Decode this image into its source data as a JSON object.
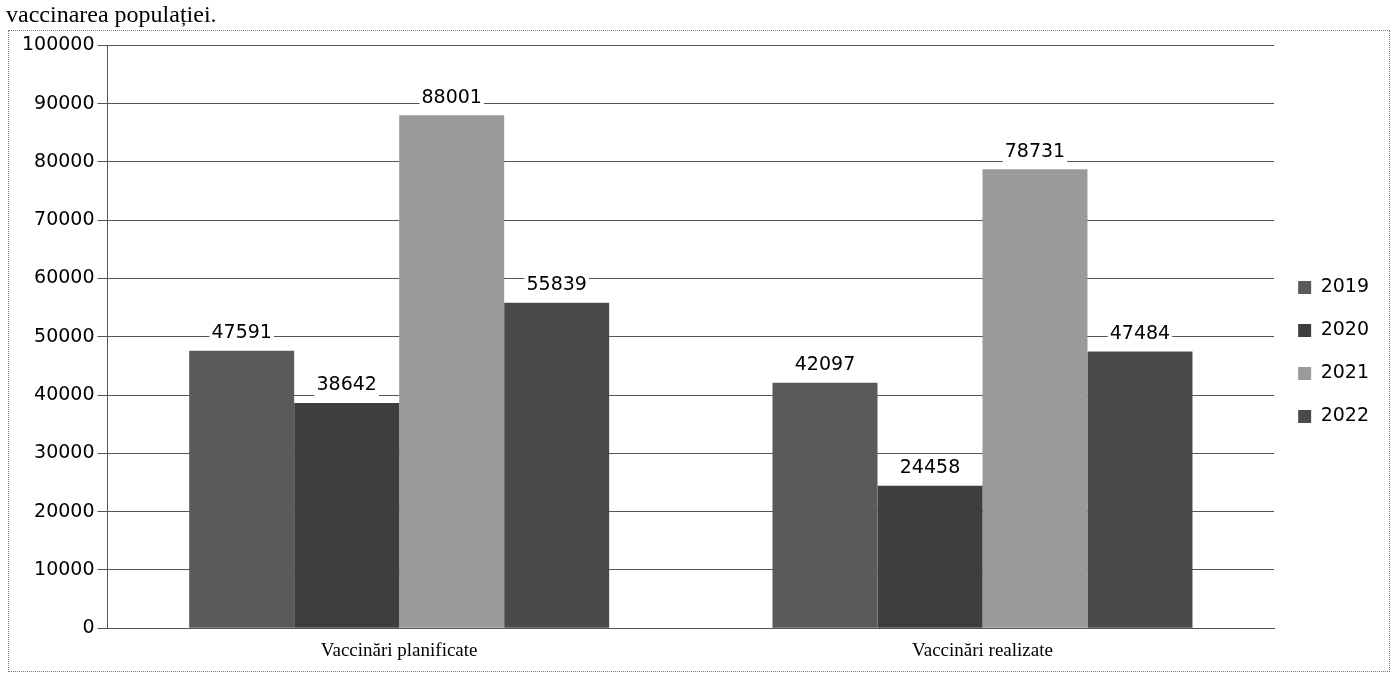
{
  "chart_data": {
    "type": "bar",
    "title": "vaccinarea populației.",
    "categories": [
      "Vaccinări planificate",
      "Vaccinări realizate"
    ],
    "series": [
      {
        "name": "2019",
        "color": "#5a5a5a",
        "values": [
          47591,
          42097
        ]
      },
      {
        "name": "2020",
        "color": "#3e3e3e",
        "values": [
          38642,
          24458
        ]
      },
      {
        "name": "2021",
        "color": "#9a9a9a",
        "values": [
          88001,
          78731
        ]
      },
      {
        "name": "2022",
        "color": "#4a4a4a",
        "values": [
          55839,
          47484
        ]
      }
    ],
    "ylim": [
      0,
      100000
    ],
    "yticks": [
      0,
      10000,
      20000,
      30000,
      40000,
      50000,
      60000,
      70000,
      80000,
      90000,
      100000
    ],
    "grid": "y",
    "legend": "right",
    "data_labels": true
  }
}
